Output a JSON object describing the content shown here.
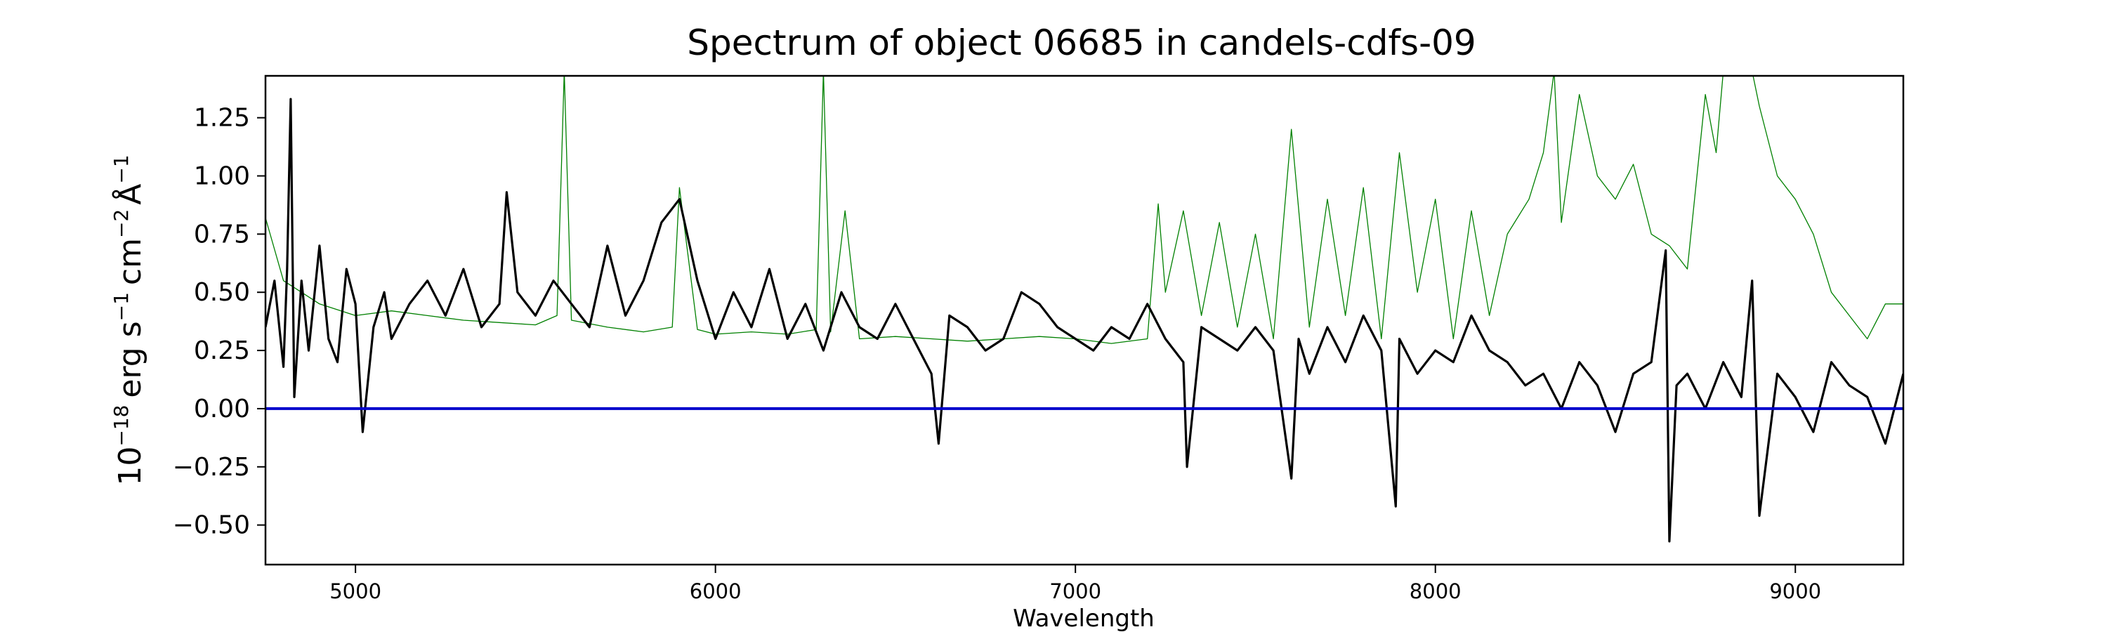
{
  "chart_data": {
    "type": "line",
    "title": "Spectrum of object 06685 in candels-cdfs-09",
    "xlabel": "Wavelength",
    "ylabel_base": "10",
    "ylabel_exp": "−18",
    "ylabel_unit_erg": "erg s",
    "ylabel_unit_cm": "cm",
    "ylabel_unit_ang": "Å",
    "ylabel_exp_s": "−1",
    "ylabel_exp_cm": "−2",
    "ylabel_exp_ang": "−1",
    "xlim": [
      4750,
      9300
    ],
    "ylim": [
      -0.67,
      1.43
    ],
    "xticks": [
      5000,
      6000,
      7000,
      8000,
      9000
    ],
    "xtick_labels": [
      "5000",
      "6000",
      "7000",
      "8000",
      "9000"
    ],
    "yticks": [
      -0.5,
      -0.25,
      0.0,
      0.25,
      0.5,
      0.75,
      1.0,
      1.25
    ],
    "ytick_labels": [
      "−0.50",
      "−0.25",
      "0.00",
      "0.25",
      "0.50",
      "0.75",
      "1.00",
      "1.25"
    ],
    "grid": false,
    "series": [
      {
        "color": "#000000",
        "x": [
          4750,
          4775,
          4800,
          4810,
          4820,
          4830,
          4850,
          4870,
          4900,
          4925,
          4950,
          4975,
          5000,
          5020,
          5050,
          5080,
          5100,
          5150,
          5200,
          5250,
          5300,
          5350,
          5400,
          5420,
          5450,
          5500,
          5550,
          5600,
          5650,
          5700,
          5750,
          5800,
          5850,
          5900,
          5950,
          6000,
          6050,
          6100,
          6150,
          6200,
          6250,
          6300,
          6350,
          6400,
          6450,
          6500,
          6550,
          6600,
          6620,
          6650,
          6700,
          6750,
          6800,
          6850,
          6900,
          6950,
          7000,
          7050,
          7100,
          7150,
          7200,
          7250,
          7300,
          7310,
          7350,
          7400,
          7450,
          7500,
          7550,
          7600,
          7620,
          7650,
          7700,
          7750,
          7800,
          7850,
          7890,
          7900,
          7950,
          8000,
          8050,
          8100,
          8150,
          8200,
          8250,
          8300,
          8350,
          8400,
          8450,
          8500,
          8550,
          8600,
          8640,
          8650,
          8670,
          8700,
          8750,
          8800,
          8850,
          8880,
          8900,
          8950,
          9000,
          9050,
          9100,
          9150,
          9200,
          9250,
          9300
        ],
        "y": [
          0.35,
          0.55,
          0.18,
          0.6,
          1.33,
          0.05,
          0.55,
          0.25,
          0.7,
          0.3,
          0.2,
          0.6,
          0.45,
          -0.1,
          0.35,
          0.5,
          0.3,
          0.45,
          0.55,
          0.4,
          0.6,
          0.35,
          0.45,
          0.93,
          0.5,
          0.4,
          0.55,
          0.45,
          0.35,
          0.7,
          0.4,
          0.55,
          0.8,
          0.9,
          0.55,
          0.3,
          0.5,
          0.35,
          0.6,
          0.3,
          0.45,
          0.25,
          0.5,
          0.35,
          0.3,
          0.45,
          0.3,
          0.15,
          -0.15,
          0.4,
          0.35,
          0.25,
          0.3,
          0.5,
          0.45,
          0.35,
          0.3,
          0.25,
          0.35,
          0.3,
          0.45,
          0.3,
          0.2,
          -0.25,
          0.35,
          0.3,
          0.25,
          0.35,
          0.25,
          -0.3,
          0.3,
          0.15,
          0.35,
          0.2,
          0.4,
          0.25,
          -0.42,
          0.3,
          0.15,
          0.25,
          0.2,
          0.4,
          0.25,
          0.2,
          0.1,
          0.15,
          0.0,
          0.2,
          0.1,
          -0.1,
          0.15,
          0.2,
          0.68,
          -0.57,
          0.1,
          0.15,
          0.0,
          0.2,
          0.05,
          0.55,
          -0.46,
          0.15,
          0.05,
          -0.1,
          0.2,
          0.1,
          0.05,
          -0.15,
          0.15
        ]
      },
      {
        "color": "#008000",
        "x": [
          4750,
          4800,
          4850,
          4900,
          5000,
          5100,
          5200,
          5300,
          5400,
          5500,
          5560,
          5580,
          5600,
          5700,
          5800,
          5880,
          5900,
          5950,
          6000,
          6100,
          6200,
          6280,
          6300,
          6320,
          6360,
          6400,
          6500,
          6600,
          6700,
          6800,
          6900,
          7000,
          7100,
          7200,
          7230,
          7250,
          7300,
          7350,
          7400,
          7450,
          7500,
          7550,
          7600,
          7650,
          7700,
          7750,
          7800,
          7850,
          7900,
          7950,
          8000,
          8050,
          8100,
          8150,
          8200,
          8260,
          8300,
          8330,
          8350,
          8400,
          8450,
          8500,
          8550,
          8600,
          8650,
          8700,
          8750,
          8780,
          8800,
          8850,
          8880,
          8900,
          8950,
          9000,
          9050,
          9100,
          9150,
          9200,
          9250,
          9300
        ],
        "y": [
          0.82,
          0.55,
          0.5,
          0.45,
          0.4,
          0.42,
          0.4,
          0.38,
          0.37,
          0.36,
          0.4,
          1.45,
          0.38,
          0.35,
          0.33,
          0.35,
          0.95,
          0.34,
          0.32,
          0.33,
          0.32,
          0.34,
          1.45,
          0.33,
          0.85,
          0.3,
          0.31,
          0.3,
          0.29,
          0.3,
          0.31,
          0.3,
          0.28,
          0.3,
          0.88,
          0.5,
          0.85,
          0.4,
          0.8,
          0.35,
          0.75,
          0.3,
          1.2,
          0.35,
          0.9,
          0.4,
          0.95,
          0.3,
          1.1,
          0.5,
          0.9,
          0.3,
          0.85,
          0.4,
          0.75,
          0.9,
          1.1,
          1.45,
          0.8,
          1.35,
          1.0,
          0.9,
          1.05,
          0.75,
          0.7,
          0.6,
          1.35,
          1.1,
          1.45,
          1.45,
          1.45,
          1.3,
          1.0,
          0.9,
          0.75,
          0.5,
          0.4,
          0.3,
          0.45,
          0.45
        ]
      },
      {
        "color": "#0000cc",
        "x": [
          4750,
          9300
        ],
        "y": [
          0.0,
          0.0
        ]
      }
    ]
  }
}
